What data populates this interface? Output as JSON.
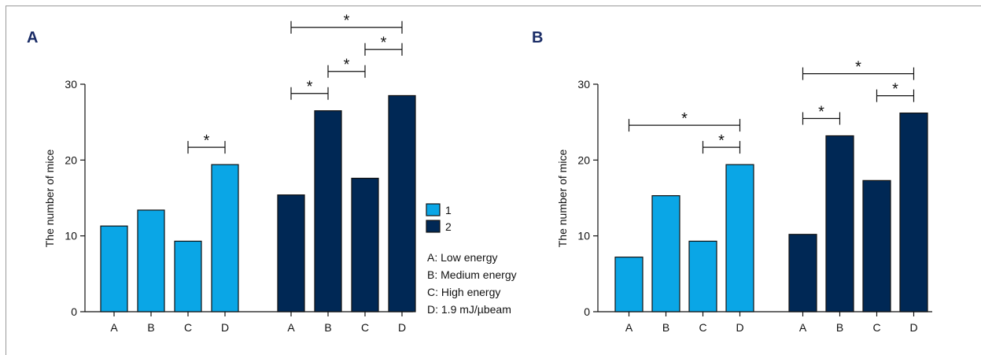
{
  "figure": {
    "legend": {
      "series": [
        {
          "label": "1",
          "color": "#0aa6e6"
        },
        {
          "label": "2",
          "color": "#002855"
        }
      ],
      "key": [
        "A: Low energy",
        "B: Medium energy",
        "C: High energy",
        "D: 1.9 mJ/µbeam"
      ]
    }
  },
  "chart_data": [
    {
      "type": "bar",
      "panel": "A",
      "title": "",
      "ylabel": "The number of mice",
      "xlabel": "",
      "ylim": [
        0,
        30
      ],
      "yticks": [
        0,
        10,
        20,
        30
      ],
      "categories": [
        "A",
        "B",
        "C",
        "D"
      ],
      "series": [
        {
          "name": "1",
          "color": "#0aa6e6",
          "values": [
            11.3,
            13.4,
            9.3,
            19.4
          ]
        },
        {
          "name": "2",
          "color": "#002855",
          "values": [
            15.4,
            26.5,
            17.6,
            28.5
          ]
        }
      ],
      "significance": [
        {
          "series": 0,
          "from": 2,
          "to": 3,
          "label": "*"
        },
        {
          "series": 1,
          "from": 0,
          "to": 1,
          "label": "*"
        },
        {
          "series": 1,
          "from": 1,
          "to": 2,
          "label": "*"
        },
        {
          "series": 1,
          "from": 2,
          "to": 3,
          "label": "*"
        },
        {
          "series": 1,
          "from": 0,
          "to": 3,
          "label": "*"
        }
      ]
    },
    {
      "type": "bar",
      "panel": "B",
      "title": "",
      "ylabel": "The number of mice",
      "xlabel": "",
      "ylim": [
        0,
        30
      ],
      "yticks": [
        0,
        10,
        20,
        30
      ],
      "categories": [
        "A",
        "B",
        "C",
        "D"
      ],
      "series": [
        {
          "name": "1",
          "color": "#0aa6e6",
          "values": [
            7.2,
            15.3,
            9.3,
            19.4
          ]
        },
        {
          "name": "2",
          "color": "#002855",
          "values": [
            10.2,
            23.2,
            17.3,
            26.2
          ]
        }
      ],
      "significance": [
        {
          "series": 0,
          "from": 2,
          "to": 3,
          "label": "*"
        },
        {
          "series": 0,
          "from": 0,
          "to": 3,
          "label": "*"
        },
        {
          "series": 1,
          "from": 0,
          "to": 1,
          "label": "*"
        },
        {
          "series": 1,
          "from": 2,
          "to": 3,
          "label": "*"
        },
        {
          "series": 1,
          "from": 0,
          "to": 3,
          "label": "*"
        }
      ]
    }
  ]
}
